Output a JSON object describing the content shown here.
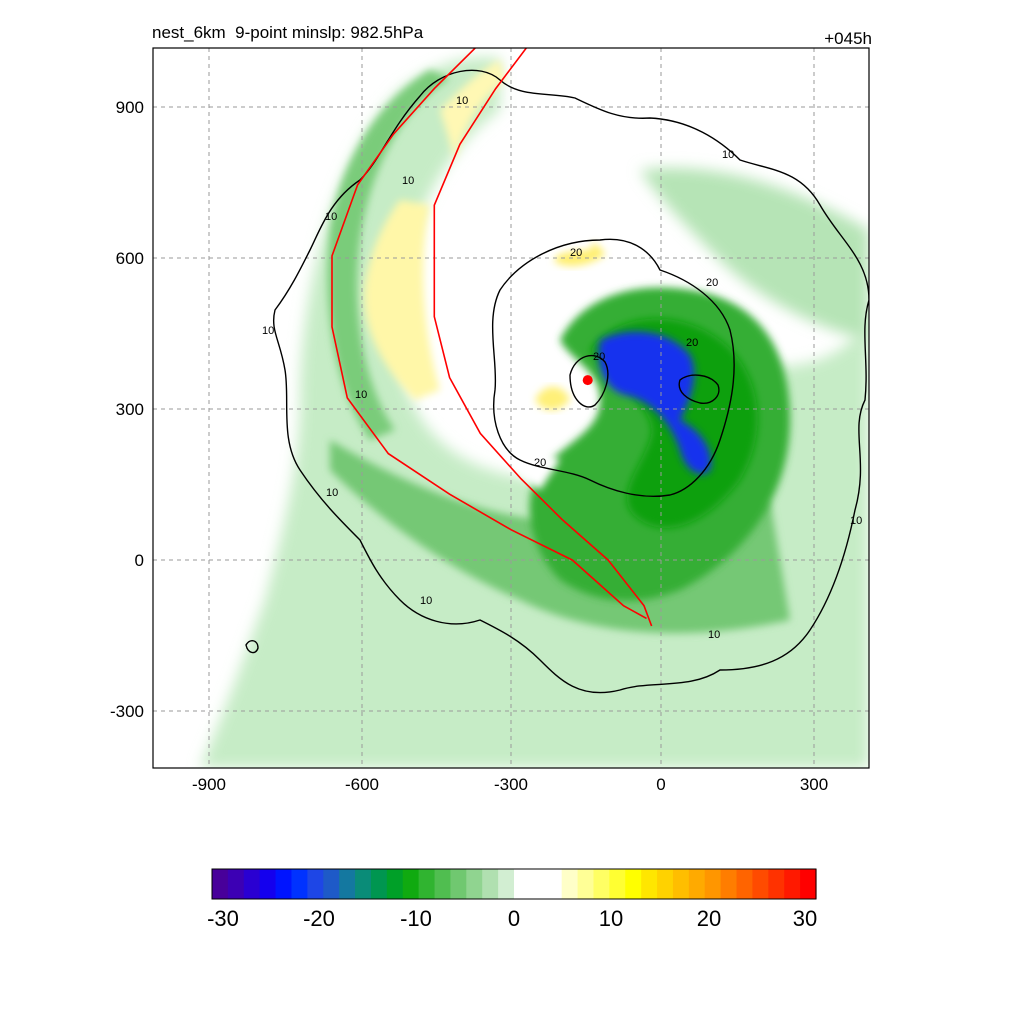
{
  "header": {
    "title_left": "nest_6km  9-point minslp: 982.5hPa",
    "title_right": "+045h"
  },
  "colors": {
    "track_line": "#ff0000",
    "center_marker": "#ff0000",
    "contour_line": "#000000",
    "grid_line": "#9a9a9a"
  },
  "chart_data": [
    {
      "type": "heatmap",
      "title": "nest_6km  9-point minslp: 982.5hPa",
      "subtitle": "+045h",
      "xlim": [
        -1000,
        400
      ],
      "ylim": [
        -410,
        1010
      ],
      "x_ticks": [
        -900,
        -600,
        -300,
        0,
        300
      ],
      "y_ticks": [
        -300,
        0,
        300,
        600,
        900
      ],
      "grid": true,
      "color_scale_range": [
        -30,
        30
      ],
      "contours": {
        "levels": [
          10,
          20
        ],
        "labels": [
          "10",
          "10",
          "10",
          "10",
          "10",
          "10",
          "10",
          "10",
          "10",
          "10",
          "20",
          "20",
          "20",
          "20",
          "20"
        ]
      },
      "storm_center": {
        "x": -150,
        "y": 355
      },
      "track_lines": [
        {
          "x": [
            -370,
            -450,
            -530,
            -600,
            -650,
            -650,
            -620,
            -540,
            -420,
            -300,
            -180,
            -80,
            -35
          ],
          "y": [
            1010,
            930,
            840,
            740,
            600,
            460,
            320,
            210,
            130,
            60,
            0,
            -90,
            -115
          ]
        },
        {
          "x": [
            -270,
            -330,
            -400,
            -450,
            -450,
            -420,
            -360,
            -280,
            -200,
            -110,
            -40,
            -25
          ],
          "y": [
            1010,
            930,
            820,
            700,
            480,
            360,
            250,
            160,
            80,
            0,
            -90,
            -130
          ]
        }
      ]
    },
    {
      "type": "heatmap",
      "title": "",
      "values_range": [
        -30,
        30
      ],
      "ticks": [
        -30,
        -20,
        -10,
        0,
        10,
        20,
        30
      ],
      "tick_labels": [
        "-30",
        "-20",
        "-10",
        "0",
        "10",
        "20",
        "30"
      ],
      "colors": [
        "#48009a",
        "#3c00b4",
        "#2a00d2",
        "#1400ee",
        "#0014ff",
        "#0032ff",
        "#1e46e6",
        "#1e5ac8",
        "#1478a0",
        "#0a8c78",
        "#009650",
        "#00a028",
        "#10aa10",
        "#30b430",
        "#50be50",
        "#70c870",
        "#90d490",
        "#b0e0b0",
        "#d2eed2",
        "#ffffff",
        "#ffffff",
        "#ffffff",
        "#ffffc8",
        "#ffff96",
        "#ffff64",
        "#ffff32",
        "#ffff00",
        "#ffe600",
        "#ffd200",
        "#ffbe00",
        "#ffaa00",
        "#ff9600",
        "#ff7d00",
        "#ff6400",
        "#ff4b00",
        "#ff3200",
        "#ff1900",
        "#ff0000"
      ]
    }
  ]
}
